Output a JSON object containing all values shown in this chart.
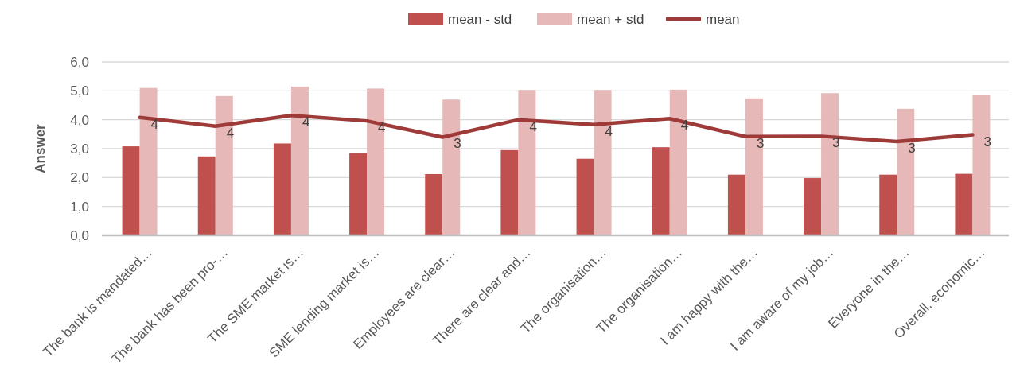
{
  "chart_data": {
    "type": "bar",
    "ylabel": "Answer",
    "categories": [
      "The bank is mandated…",
      "The bank has been pro-…",
      "The SME market is…",
      "SME lending market is…",
      "Employees are clear…",
      "There are clear and…",
      "The organisation…",
      "The organisation…",
      "I am happy with the…",
      "I am aware of my job…",
      "Everyone in the…",
      "Overall, economic…"
    ],
    "series": [
      {
        "name": "mean - std",
        "color": "#c0504d",
        "values": [
          3.08,
          2.73,
          3.18,
          2.85,
          2.12,
          2.95,
          2.65,
          3.05,
          2.1,
          1.98,
          2.1,
          2.13
        ]
      },
      {
        "name": "mean + std",
        "color": "#e6b9b8",
        "values": [
          5.1,
          4.82,
          5.15,
          5.08,
          4.7,
          5.03,
          5.03,
          5.04,
          4.74,
          4.92,
          4.38,
          4.85
        ]
      },
      {
        "name": "mean",
        "type": "line",
        "color": "#9e3a38",
        "values": [
          4.08,
          3.78,
          4.15,
          3.96,
          3.4,
          4.0,
          3.83,
          4.04,
          3.42,
          3.43,
          3.25,
          3.48
        ],
        "value_labels": [
          "4",
          "4",
          "4",
          "4",
          "3",
          "4",
          "4",
          "4",
          "3",
          "3",
          "3",
          "3"
        ]
      }
    ],
    "ylim": [
      0,
      6
    ],
    "yticks": [
      {
        "value": 0,
        "label": "0,0"
      },
      {
        "value": 1,
        "label": "1,0"
      },
      {
        "value": 2,
        "label": "2,0"
      },
      {
        "value": 3,
        "label": "3,0"
      },
      {
        "value": 4,
        "label": "4,0"
      },
      {
        "value": 5,
        "label": "5,0"
      },
      {
        "value": 6,
        "label": "6,0"
      }
    ],
    "grid": "y",
    "legend": "top",
    "marker": "none",
    "line_style": "solid"
  }
}
